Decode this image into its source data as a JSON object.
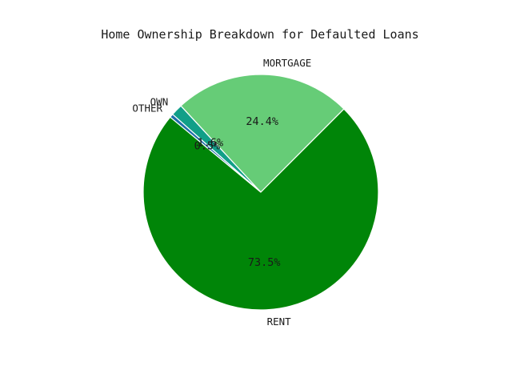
{
  "chart_data": {
    "type": "pie",
    "title": "Home Ownership Breakdown for Defaulted Loans",
    "start_angle_deg": 45,
    "direction": "counterclockwise",
    "slices": [
      {
        "label": "MORTGAGE",
        "value": 24.4,
        "pct_label": "24.4%",
        "color": "#66cc77"
      },
      {
        "label": "OWN",
        "value": 1.6,
        "pct_label": "1.6%",
        "color": "#119f88"
      },
      {
        "label": "OTHER",
        "value": 0.5,
        "pct_label": "0.5%",
        "color": "#1f6faa"
      },
      {
        "label": "RENT",
        "value": 73.5,
        "pct_label": "73.5%",
        "color": "#008508"
      }
    ]
  }
}
